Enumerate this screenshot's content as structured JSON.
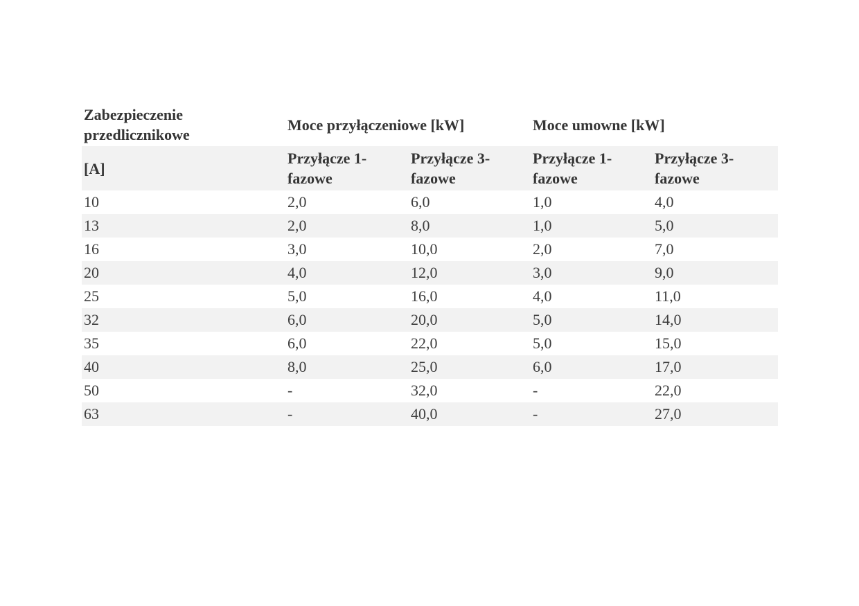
{
  "page": {
    "background": "#ffffff"
  },
  "table": {
    "colors": {
      "stripe": "#f2f2f2",
      "text": "#3d3d3d",
      "header_text": "#353535",
      "page_bg": "#ffffff"
    },
    "group_headers": [
      {
        "label": "Zabezpieczenie przedlicznikowe"
      },
      {
        "label": "Moce przyłączeniowe [kW]"
      },
      {
        "label": "Moce umowne [kW]"
      }
    ],
    "column_headers": [
      "[A]",
      "Przyłącze 1-fazowe",
      "Przyłącze 3-fazowe",
      "Przyłącze 1-fazowe",
      "Przyłącze 3-fazowe"
    ],
    "rows": [
      [
        "10",
        "2,0",
        "6,0",
        "1,0",
        "4,0"
      ],
      [
        "13",
        "2,0",
        "8,0",
        "1,0",
        "5,0"
      ],
      [
        "16",
        "3,0",
        "10,0",
        "2,0",
        "7,0"
      ],
      [
        "20",
        "4,0",
        "12,0",
        "3,0",
        "9,0"
      ],
      [
        "25",
        "5,0",
        "16,0",
        "4,0",
        "11,0"
      ],
      [
        "32",
        "6,0",
        "20,0",
        "5,0",
        "14,0"
      ],
      [
        "35",
        "6,0",
        "22,0",
        "5,0",
        "15,0"
      ],
      [
        "40",
        "8,0",
        "25,0",
        "6,0",
        "17,0"
      ],
      [
        "50",
        "-",
        "32,0",
        "-",
        "22,0"
      ],
      [
        "63",
        "-",
        "40,0",
        "-",
        "27,0"
      ]
    ]
  }
}
